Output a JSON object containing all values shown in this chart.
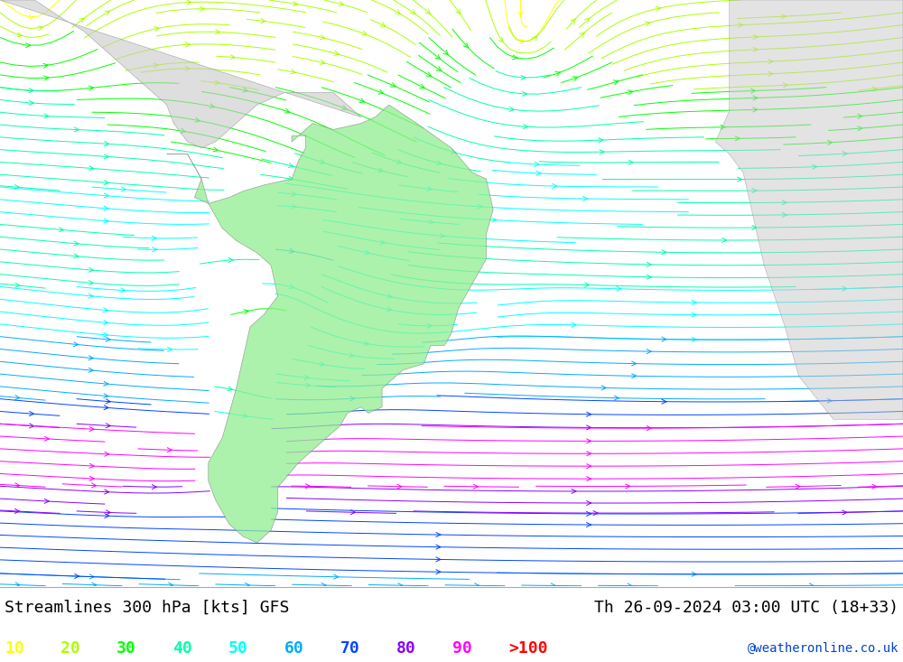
{
  "title_left": "Streamlines 300 hPa [kts] GFS",
  "title_right": "Th 26-09-2024 03:00 UTC (18+33)",
  "credit": "@weatheronline.co.uk",
  "legend_values": [
    "10",
    "20",
    "30",
    "40",
    "50",
    "60",
    "70",
    "80",
    "90",
    ">100"
  ],
  "legend_colors": [
    "#ffff00",
    "#aaff00",
    "#00ff00",
    "#00ffaa",
    "#00ffff",
    "#00aaff",
    "#0044ff",
    "#8800ff",
    "#ff00ff",
    "#ff0000"
  ],
  "bg_color": "#dcdcdc",
  "land_color_sa": "#90ee90",
  "land_color_other": "#c8c8c8",
  "figsize": [
    10.0,
    7.33
  ],
  "dpi": 100,
  "font_size_title": 13,
  "font_size_legend": 13,
  "font_size_credit": 10,
  "xlim": [
    -105,
    25
  ],
  "ylim": [
    -62,
    33
  ],
  "sa_coast": [
    [
      -81,
      8
    ],
    [
      -78,
      8
    ],
    [
      -76,
      4
    ],
    [
      -77,
      1
    ],
    [
      -75,
      0
    ],
    [
      -72,
      1
    ],
    [
      -70,
      2
    ],
    [
      -67,
      3
    ],
    [
      -63,
      4
    ],
    [
      -62,
      7
    ],
    [
      -61,
      9
    ],
    [
      -61,
      11
    ],
    [
      -63,
      11
    ],
    [
      -63,
      10
    ],
    [
      -60,
      13
    ],
    [
      -57,
      12
    ],
    [
      -53,
      13
    ],
    [
      -51,
      14
    ],
    [
      -49,
      16
    ],
    [
      -45,
      13
    ],
    [
      -40,
      9
    ],
    [
      -37,
      5
    ],
    [
      -35,
      4
    ],
    [
      -34,
      -1
    ],
    [
      -35,
      -5
    ],
    [
      -35,
      -9
    ],
    [
      -37,
      -13
    ],
    [
      -39,
      -17
    ],
    [
      -40,
      -21
    ],
    [
      -41,
      -23
    ],
    [
      -43,
      -23
    ],
    [
      -44,
      -26
    ],
    [
      -47,
      -27
    ],
    [
      -48,
      -28
    ],
    [
      -49,
      -29
    ],
    [
      -50,
      -30
    ],
    [
      -50,
      -33
    ],
    [
      -52,
      -34
    ],
    [
      -53,
      -33
    ],
    [
      -55,
      -34
    ],
    [
      -56,
      -36
    ],
    [
      -58,
      -38
    ],
    [
      -60,
      -40
    ],
    [
      -62,
      -42
    ],
    [
      -65,
      -46
    ],
    [
      -65,
      -50
    ],
    [
      -66,
      -53
    ],
    [
      -68,
      -55
    ],
    [
      -70,
      -54
    ],
    [
      -72,
      -52
    ],
    [
      -74,
      -48
    ],
    [
      -75,
      -45
    ],
    [
      -75,
      -42
    ],
    [
      -73,
      -38
    ],
    [
      -72,
      -34
    ],
    [
      -71,
      -30
    ],
    [
      -70,
      -25
    ],
    [
      -69,
      -20
    ],
    [
      -67,
      -18
    ],
    [
      -65,
      -15
    ],
    [
      -66,
      -10
    ],
    [
      -68,
      -8
    ],
    [
      -71,
      -6
    ],
    [
      -73,
      -4
    ],
    [
      -75,
      0
    ],
    [
      -76,
      4
    ],
    [
      -78,
      8
    ],
    [
      -81,
      8
    ]
  ],
  "na_coast": [
    [
      -105,
      33
    ],
    [
      -100,
      33
    ],
    [
      -96,
      30
    ],
    [
      -93,
      28
    ],
    [
      -90,
      25
    ],
    [
      -87,
      22
    ],
    [
      -85,
      20
    ],
    [
      -83,
      18
    ],
    [
      -81,
      16
    ],
    [
      -80,
      13
    ],
    [
      -78,
      10
    ],
    [
      -76,
      9
    ],
    [
      -74,
      10
    ],
    [
      -72,
      12
    ],
    [
      -70,
      14
    ],
    [
      -68,
      16
    ],
    [
      -64,
      18
    ],
    [
      -61,
      18
    ],
    [
      -57,
      18
    ],
    [
      -53,
      14
    ],
    [
      -105,
      33
    ]
  ],
  "africa_coast": [
    [
      0,
      33
    ],
    [
      25,
      33
    ],
    [
      25,
      -35
    ],
    [
      15,
      -35
    ],
    [
      10,
      -28
    ],
    [
      8,
      -20
    ],
    [
      5,
      -10
    ],
    [
      3,
      0
    ],
    [
      2,
      5
    ],
    [
      0,
      8
    ],
    [
      -2,
      10
    ],
    [
      0,
      15
    ],
    [
      0,
      33
    ]
  ],
  "speed_levels": [
    0,
    10,
    20,
    30,
    40,
    50,
    60,
    70,
    80,
    90,
    200
  ]
}
